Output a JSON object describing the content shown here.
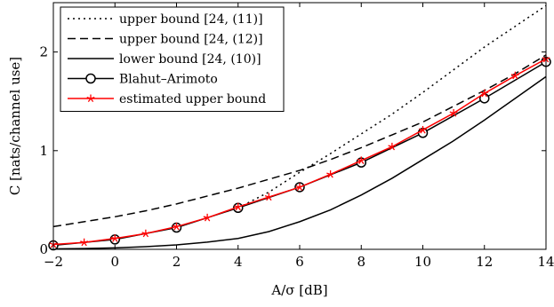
{
  "chart_data": {
    "type": "line",
    "xlabel": "A/σ [dB]",
    "ylabel": "C [nats/channel use]",
    "xlim": [
      -2,
      14
    ],
    "ylim": [
      0,
      2.5
    ],
    "xticks": [
      -2,
      0,
      2,
      4,
      6,
      8,
      10,
      12,
      14
    ],
    "xtick_labels": [
      "−2",
      "0",
      "2",
      "4",
      "6",
      "8",
      "10",
      "12",
      "14"
    ],
    "yticks": [
      0,
      1,
      2
    ],
    "ytick_labels": [
      "0",
      "1",
      "2"
    ],
    "grid": false,
    "legend_position": "top-left",
    "series": [
      {
        "name": "upper bound [24, (11)]",
        "color": "#000000",
        "style": "dotted",
        "marker": "none",
        "x": [
          4,
          5,
          6,
          7,
          8,
          9,
          10,
          11,
          12,
          13,
          14
        ],
        "y": [
          0.42,
          0.58,
          0.78,
          0.97,
          1.17,
          1.37,
          1.59,
          1.82,
          2.05,
          2.26,
          2.47
        ]
      },
      {
        "name": "upper bound [24, (12)]",
        "color": "#000000",
        "style": "dashed",
        "marker": "none",
        "x": [
          -2,
          -1,
          0,
          1,
          2,
          3,
          4,
          5,
          6,
          7,
          8,
          9,
          10,
          11,
          12,
          13,
          14
        ],
        "y": [
          0.23,
          0.28,
          0.33,
          0.39,
          0.46,
          0.54,
          0.62,
          0.71,
          0.8,
          0.91,
          1.03,
          1.16,
          1.29,
          1.45,
          1.61,
          1.78,
          1.97
        ]
      },
      {
        "name": "lower bound [24, (10)]",
        "color": "#000000",
        "style": "solid",
        "marker": "none",
        "x": [
          -2,
          -1,
          0,
          1,
          2,
          3,
          4,
          5,
          6,
          7,
          8,
          9,
          10,
          11,
          12,
          13,
          14
        ],
        "y": [
          0.004,
          0.008,
          0.015,
          0.027,
          0.045,
          0.073,
          0.11,
          0.18,
          0.28,
          0.4,
          0.55,
          0.72,
          0.91,
          1.1,
          1.31,
          1.53,
          1.75
        ]
      },
      {
        "name": "Blahut–Arimoto",
        "color": "#000000",
        "style": "solid",
        "marker": "circle",
        "x": [
          -2,
          0,
          2,
          4,
          6,
          8,
          10,
          12,
          14
        ],
        "y": [
          0.04,
          0.1,
          0.22,
          0.42,
          0.63,
          0.88,
          1.18,
          1.53,
          1.9
        ]
      },
      {
        "name": "estimated upper bound",
        "color": "#ff0000",
        "style": "solid",
        "marker": "star",
        "x": [
          -2,
          -1,
          0,
          1,
          2,
          3,
          4,
          5,
          6,
          7,
          8,
          9,
          10,
          11,
          12,
          13,
          14
        ],
        "y": [
          0.05,
          0.07,
          0.11,
          0.16,
          0.23,
          0.32,
          0.43,
          0.53,
          0.63,
          0.76,
          0.9,
          1.04,
          1.21,
          1.38,
          1.58,
          1.76,
          1.93
        ]
      }
    ]
  }
}
